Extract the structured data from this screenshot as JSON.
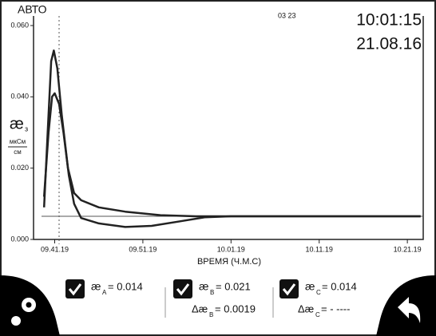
{
  "header": {
    "mode": "АВТО",
    "code": "03 23",
    "time": "10:01:15",
    "date": "21.08.16"
  },
  "chart": {
    "type": "line",
    "y_label": {
      "symbol": "æ",
      "sub": "з",
      "unit_top": "мкСм",
      "unit_bottom": "см"
    },
    "x_label": "ВРЕМЯ (Ч.М.С)",
    "xlim": [
      -2.4,
      41.8
    ],
    "ylim": [
      0,
      0.06
    ],
    "xticks": [
      {
        "value": 0,
        "label": "09.41.19"
      },
      {
        "value": 10,
        "label": "09.51.19"
      },
      {
        "value": 20,
        "label": "10.01.19"
      },
      {
        "value": 30,
        "label": "10.11.19"
      },
      {
        "value": 40,
        "label": "10.21.19"
      }
    ],
    "yticks": [
      {
        "value": 0,
        "label": "0.000"
      },
      {
        "value": 0.02,
        "label": "0.020"
      },
      {
        "value": 0.04,
        "label": "0.040"
      },
      {
        "value": 0.06,
        "label": "0.060"
      }
    ],
    "series": [
      {
        "color": "#222",
        "x": [
          -1.2,
          -0.8,
          -0.4,
          -0.1,
          0.3,
          0.8,
          1.5,
          2.2,
          3,
          5,
          8,
          12,
          16,
          41.5
        ],
        "y": [
          0.009,
          0.03,
          0.05,
          0.053,
          0.048,
          0.035,
          0.02,
          0.013,
          0.011,
          0.009,
          0.0078,
          0.0068,
          0.0065,
          0.0065
        ]
      },
      {
        "color": "#222",
        "x": [
          -1.2,
          -0.7,
          -0.3,
          0,
          0.5,
          1,
          1.6,
          2.2,
          3,
          5,
          8,
          11,
          14,
          17,
          20,
          41.5
        ],
        "y": [
          0.012,
          0.03,
          0.04,
          0.041,
          0.038,
          0.03,
          0.018,
          0.01,
          0.006,
          0.0045,
          0.0035,
          0.0038,
          0.005,
          0.0062,
          0.0065,
          0.0065
        ]
      }
    ]
  },
  "readouts": [
    {
      "symbol": "æ",
      "sub": "А",
      "value": "= 0.014"
    },
    {
      "symbol": "æ",
      "sub": "В",
      "value": "= 0.021",
      "delta_symbol": "Δæ",
      "delta_sub": "В",
      "delta_value": "= 0.0019"
    },
    {
      "symbol": "æ",
      "sub": "С",
      "value": "= 0.014",
      "delta_symbol": "Δæ",
      "delta_sub": "С",
      "delta_value": "= - ----"
    }
  ]
}
